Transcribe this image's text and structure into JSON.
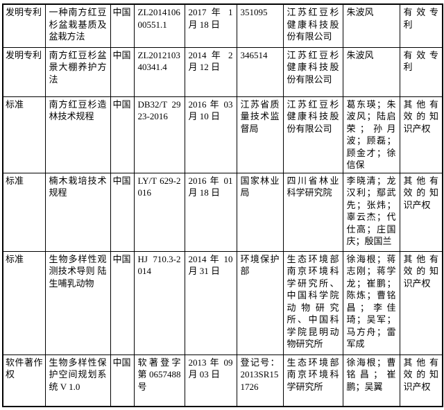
{
  "colors": {
    "border": "#000000",
    "text": "#000000",
    "background": "#ffffff"
  },
  "rows": [
    {
      "type": "发明专利",
      "name": "一种南方红豆杉盆栽基质及盆栽方法",
      "country": "中国",
      "number": "ZL201410600551.1",
      "date": "2017 年 1 月 18 日",
      "cert": "351095",
      "org": "江苏红豆杉健康科技股份有限公司",
      "people": "朱波风",
      "status": "有效专利"
    },
    {
      "type": "发明专利",
      "name": "南方红豆杉盆景大棚养护方法",
      "country": "中国",
      "number": "ZL201210340341.4",
      "date": "2014 年 2 月 12 日",
      "cert": "346514",
      "org": "江苏红豆杉健康科技股份有限公司",
      "people": "朱波风",
      "status": "有效专利"
    },
    {
      "type": "标准",
      "name": "南方红豆杉造林技术规程",
      "country": "中国",
      "number": "DB32/T 2923-2016",
      "date": "2016 年 03 月 10 日",
      "cert": "江苏省质量技术监督局",
      "org": "江苏红豆杉健康科技股份有限公司",
      "people": "葛东瑛；朱波风；陆启荣；孙月波；顾磊；顾金才；徐信保",
      "status": "其他有效的知识产权"
    },
    {
      "type": "标准",
      "name": "楠木栽培技术规程",
      "country": "中国",
      "number": "LY/T 629-2016",
      "date": "2016 年 01 月 18 日",
      "cert": "国家林业局",
      "org": "四川省林业科学研究院",
      "people": "李晓清；龙汉利；鄢武先；张炜；辜云杰；代仕高；庄国庆；殷国兰",
      "status": "其他有效的知识产权"
    },
    {
      "type": "标准",
      "name": "生物多样性观测技术导则 陆生哺乳动物",
      "country": "中国",
      "number": "HJ 710.3-2014",
      "date": "2014 年 10 月 31 日",
      "cert": "环境保护部",
      "org": "生态环境部南京环境科学研究所、中国科学院动物研究所、中国科学院昆明动物研究所",
      "people": "徐海根；蒋志刚；蒋学龙；崔鹏；陈炼；曹铭昌；李佳琦；吴军；马方舟；雷军成",
      "status": "其他有效的知识产权"
    },
    {
      "type": "软件著作权",
      "name": "生物多样性保护空间规划系统 V 1.0",
      "country": "中国",
      "number": "软著登字第0657488号",
      "date": "2013 年 09 月 03 日",
      "cert": "登记号：2013SR151726",
      "org": "生态环境部南京环境科学研究所",
      "people": "徐海根；曹铭昌；崔鹏；吴翼",
      "status": "其他有效的知识产权"
    }
  ]
}
